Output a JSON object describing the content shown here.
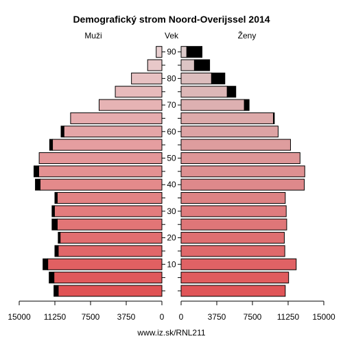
{
  "chart_data": {
    "type": "bar",
    "title": "Demografický strom Noord-Overijssel 2014",
    "left_label": "Muži",
    "center_label": "Vek",
    "right_label": "Ženy",
    "footer": "www.iz.sk/RNL211",
    "age_groups": [
      "0-4",
      "5-9",
      "10-14",
      "15-19",
      "20-24",
      "25-29",
      "30-34",
      "35-39",
      "40-44",
      "45-49",
      "50-54",
      "55-59",
      "60-64",
      "65-69",
      "70-74",
      "75-79",
      "80-84",
      "85-89",
      "90+"
    ],
    "age_ticks": [
      "10",
      "20",
      "30",
      "40",
      "50",
      "60",
      "70",
      "80",
      "90"
    ],
    "x_ticks_left": [
      "15000",
      "11250",
      "7500",
      "3750",
      "0"
    ],
    "x_ticks_right": [
      "0",
      "3750",
      "7500",
      "11250",
      "15000"
    ],
    "xlim": [
      0,
      15000
    ],
    "series": [
      {
        "name": "Muži",
        "base": [
          10900,
          11350,
          12000,
          10900,
          10700,
          11000,
          11300,
          11000,
          12800,
          12950,
          12900,
          11500,
          10300,
          9600,
          6600,
          4900,
          3200,
          1500,
          600
        ],
        "excess": [
          450,
          500,
          500,
          350,
          200,
          550,
          250,
          250,
          500,
          500,
          0,
          300,
          300,
          0,
          0,
          0,
          0,
          0,
          0
        ]
      },
      {
        "name": "Ženy",
        "base": [
          10950,
          11300,
          12100,
          10900,
          10850,
          11100,
          11050,
          10950,
          12950,
          13000,
          12500,
          11500,
          10200,
          9700,
          6650,
          4850,
          3200,
          1400,
          600
        ],
        "excess": [
          0,
          0,
          0,
          0,
          0,
          0,
          0,
          0,
          0,
          0,
          0,
          0,
          0,
          100,
          500,
          900,
          1400,
          1600,
          1600
        ]
      }
    ],
    "colors": {
      "male_gradient": [
        "#e05254",
        "#e8cfd0"
      ],
      "female_gradient": [
        "#e05558",
        "#dccaca"
      ],
      "excess": "#000000"
    }
  }
}
